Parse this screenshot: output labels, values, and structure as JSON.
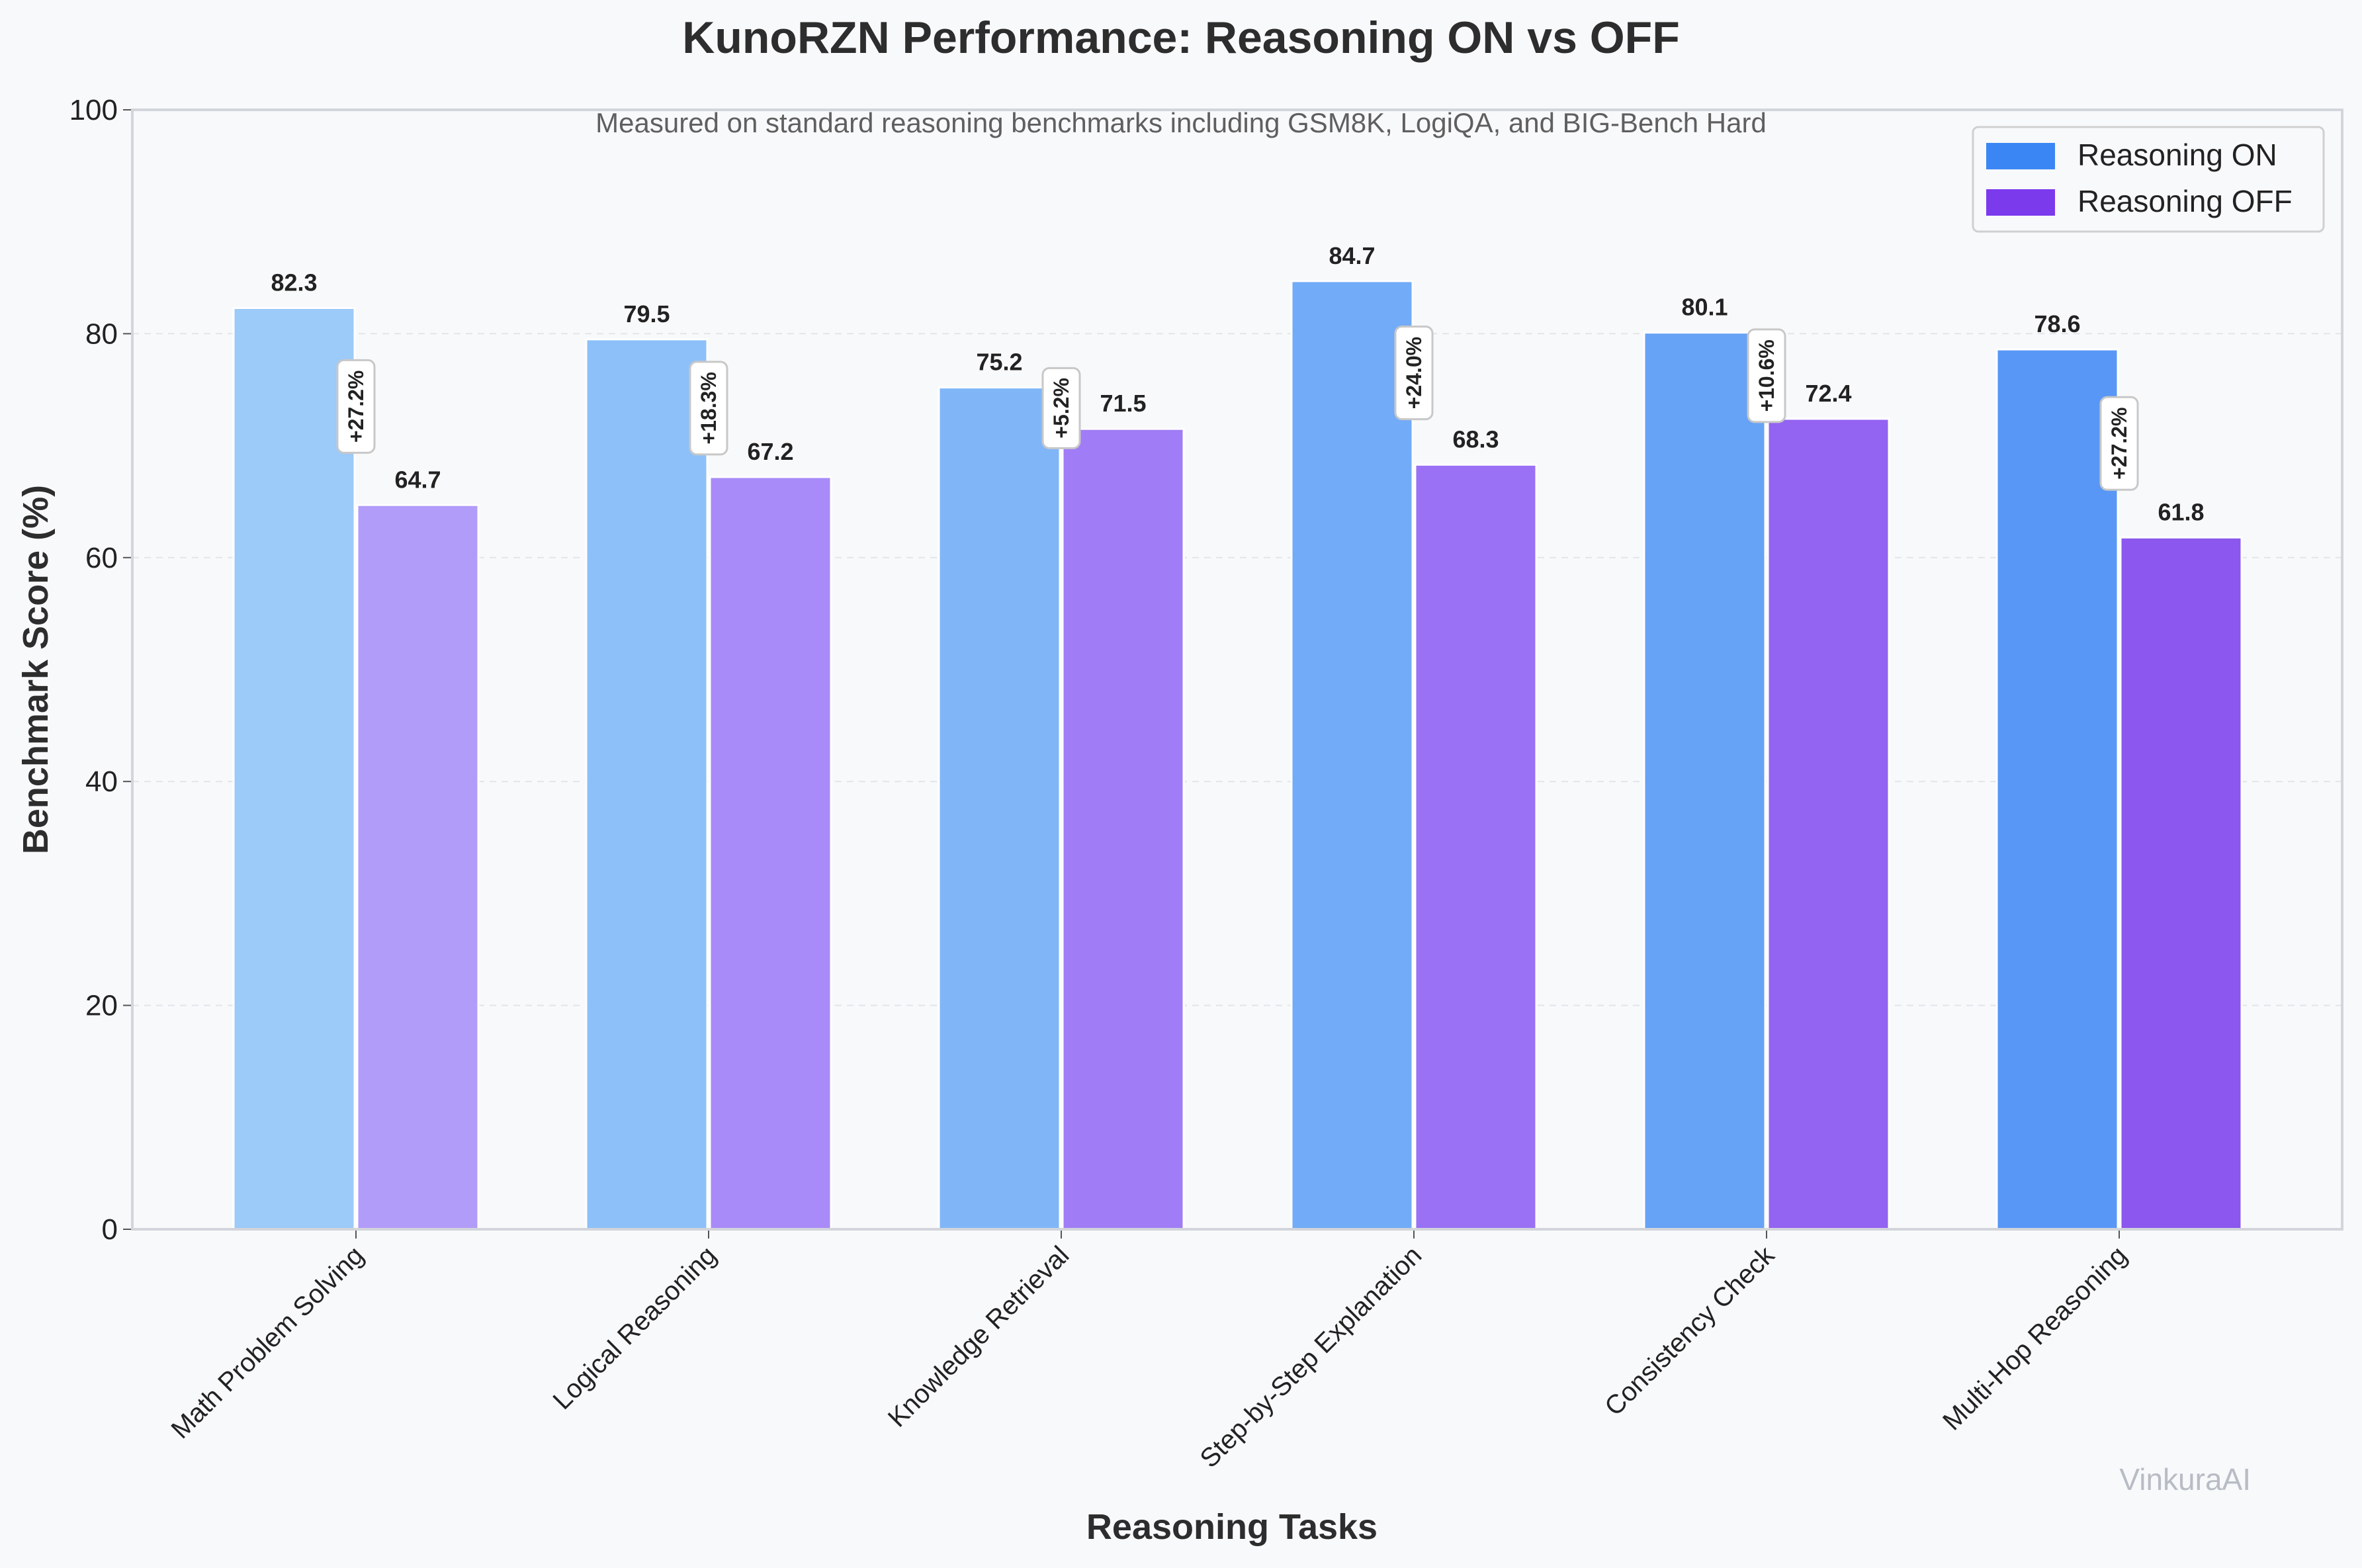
{
  "chart_data": {
    "type": "bar",
    "title": "KunoRZN Performance: Reasoning ON vs OFF",
    "subtitle": "Measured on standard reasoning benchmarks including GSM8K, LogiQA, and BIG-Bench Hard",
    "xlabel": "Reasoning Tasks",
    "ylabel": "Benchmark Score (%)",
    "ylim": [
      0,
      100
    ],
    "yticks": [
      "0",
      "20",
      "40",
      "60",
      "80",
      "100"
    ],
    "grid": true,
    "legend_position": "top-right",
    "categories": [
      "Math Problem Solving",
      "Logical Reasoning",
      "Knowledge Retrieval",
      "Step-by-Step Explanation",
      "Consistency Check",
      "Multi-Hop Reasoning"
    ],
    "series": [
      {
        "name": "Reasoning ON",
        "legend_color": "#3b86f5",
        "values": [
          82.3,
          79.5,
          75.2,
          84.7,
          80.1,
          78.6
        ],
        "labels": [
          "82.3",
          "79.5",
          "75.2",
          "84.7",
          "80.1",
          "78.6"
        ],
        "colors": [
          "#9ccaf9",
          "#8dc0f9",
          "#80b6f8",
          "#72abf7",
          "#66a2f6",
          "#5897f6"
        ]
      },
      {
        "name": "Reasoning OFF",
        "legend_color": "#7c3aed",
        "values": [
          64.7,
          67.2,
          71.5,
          68.3,
          72.4,
          61.8
        ],
        "labels": [
          "64.7",
          "67.2",
          "71.5",
          "68.3",
          "72.4",
          "61.8"
        ],
        "colors": [
          "#b19cf9",
          "#a88bf8",
          "#a07df6",
          "#9a71f4",
          "#9363f1",
          "#8b57ee"
        ]
      }
    ],
    "improvements": [
      "+27.2%",
      "+18.3%",
      "+5.2%",
      "+24.0%",
      "+10.6%",
      "+27.2%"
    ],
    "watermark": "VinkuraAI"
  }
}
